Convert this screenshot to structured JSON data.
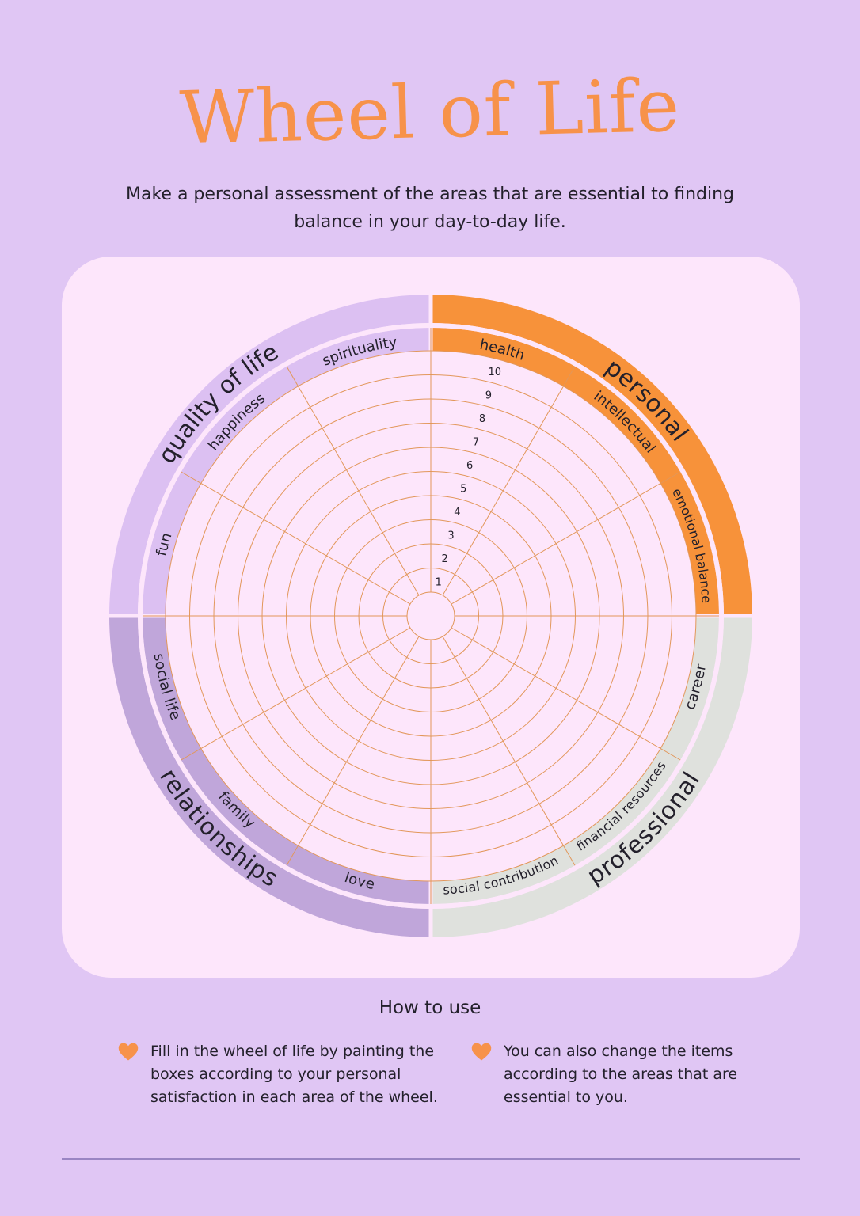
{
  "title": "Wheel of Life",
  "subtitle": "Make a personal assessment of the areas that are essential to finding balance in your day-to-day life.",
  "wheel": {
    "scale": [
      "1",
      "2",
      "3",
      "4",
      "5",
      "6",
      "7",
      "8",
      "9",
      "10"
    ],
    "colors": {
      "personal": "#f7923a",
      "professional": "#dfe1dd",
      "relationships": "#c0a6da",
      "quality_of_life": "#dcc0f2",
      "grid": "#e2975a",
      "face": "#fde6fb"
    },
    "groups": [
      {
        "key": "personal",
        "label": "personal",
        "areas": [
          "health",
          "intellectual",
          "emotional balance"
        ]
      },
      {
        "key": "professional",
        "label": "professional",
        "areas": [
          "career",
          "financial resources",
          "social contribution"
        ]
      },
      {
        "key": "relationships",
        "label": "relationships",
        "areas": [
          "love",
          "family",
          "social life"
        ]
      },
      {
        "key": "quality_of_life",
        "label": "quality of life",
        "areas": [
          "fun",
          "happiness",
          "spirituality"
        ]
      }
    ]
  },
  "how_to_use": {
    "title": "How to use",
    "tips": [
      {
        "text": "Fill in the wheel of life by painting the boxes according to your personal satisfaction in each area of the wheel.",
        "icon": "heart-icon"
      },
      {
        "text": "You can also change the items according to the areas that are essential to you.",
        "icon": "heart-icon"
      }
    ],
    "accent": "#f7924a"
  }
}
